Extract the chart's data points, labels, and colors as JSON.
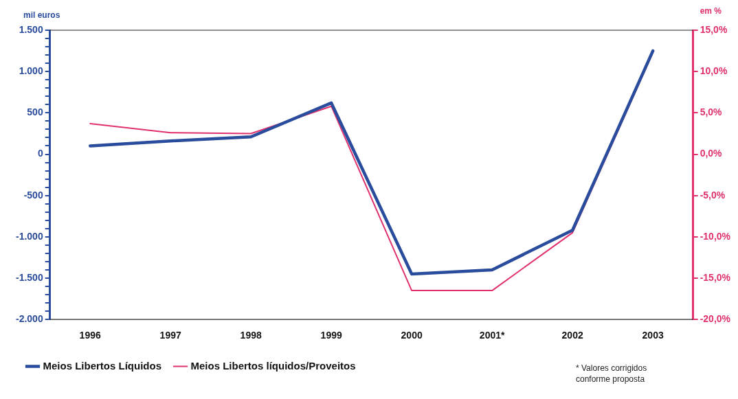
{
  "chart_data": {
    "type": "line",
    "categories": [
      "1996",
      "1997",
      "1998",
      "1999",
      "2000",
      "2001*",
      "2002",
      "2003"
    ],
    "series": [
      {
        "name": "Meios Libertos Líquidos",
        "color": "#2a4c9c",
        "values": [
          100,
          160,
          210,
          620,
          -1450,
          -1400,
          -920,
          1250
        ]
      },
      {
        "name": "Meios Libertos líquidos/Proveitos",
        "color": "#e0306e",
        "axis": "y2",
        "values": [
          3.7,
          2.6,
          2.5,
          5.8,
          -16.5,
          -16.5,
          -9.5,
          12.3
        ]
      }
    ],
    "ylabel": "mil euros",
    "y2label": "em %",
    "ylim": [
      -2000,
      1500
    ],
    "yticks": [
      {
        "value": -2000,
        "label": "-2.000"
      },
      {
        "value": -1900,
        "label": null
      },
      {
        "value": -1800,
        "label": null
      },
      {
        "value": -1700,
        "label": null
      },
      {
        "value": -1600,
        "label": null
      },
      {
        "value": -1500,
        "label": "-1.500"
      },
      {
        "value": -1400,
        "label": null
      },
      {
        "value": -1300,
        "label": null
      },
      {
        "value": -1200,
        "label": null
      },
      {
        "value": -1100,
        "label": null
      },
      {
        "value": -1000,
        "label": "-1.000"
      },
      {
        "value": -900,
        "label": null
      },
      {
        "value": -800,
        "label": null
      },
      {
        "value": -700,
        "label": null
      },
      {
        "value": -600,
        "label": null
      },
      {
        "value": -500,
        "label": "-500"
      },
      {
        "value": -400,
        "label": null
      },
      {
        "value": -300,
        "label": null
      },
      {
        "value": -200,
        "label": null
      },
      {
        "value": -100,
        "label": null
      },
      {
        "value": 0,
        "label": "0"
      },
      {
        "value": 100,
        "label": null
      },
      {
        "value": 200,
        "label": null
      },
      {
        "value": 300,
        "label": null
      },
      {
        "value": 400,
        "label": null
      },
      {
        "value": 500,
        "label": "500"
      },
      {
        "value": 600,
        "label": null
      },
      {
        "value": 700,
        "label": null
      },
      {
        "value": 800,
        "label": null
      },
      {
        "value": 900,
        "label": null
      },
      {
        "value": 1000,
        "label": "1.000"
      },
      {
        "value": 1100,
        "label": null
      },
      {
        "value": 1200,
        "label": null
      },
      {
        "value": 1300,
        "label": null
      },
      {
        "value": 1400,
        "label": null
      },
      {
        "value": 1500,
        "label": "1.500"
      }
    ],
    "y2lim": [
      -20,
      15
    ],
    "y2ticks": [
      {
        "value": -20,
        "label": "-20,0%"
      },
      {
        "value": -15,
        "label": "-15,0%"
      },
      {
        "value": -10,
        "label": "-10,0%"
      },
      {
        "value": -5,
        "label": "-5,0%"
      },
      {
        "value": 0,
        "label": "0,0%"
      },
      {
        "value": 5,
        "label": "5,0%"
      },
      {
        "value": 10,
        "label": "10,0%"
      },
      {
        "value": 15,
        "label": "15,0%"
      }
    ],
    "grid": false,
    "legend": "bottom",
    "marker": "none",
    "line_style": "solid",
    "annotations": [
      "* Valores corrigidos conforme proposta"
    ]
  }
}
